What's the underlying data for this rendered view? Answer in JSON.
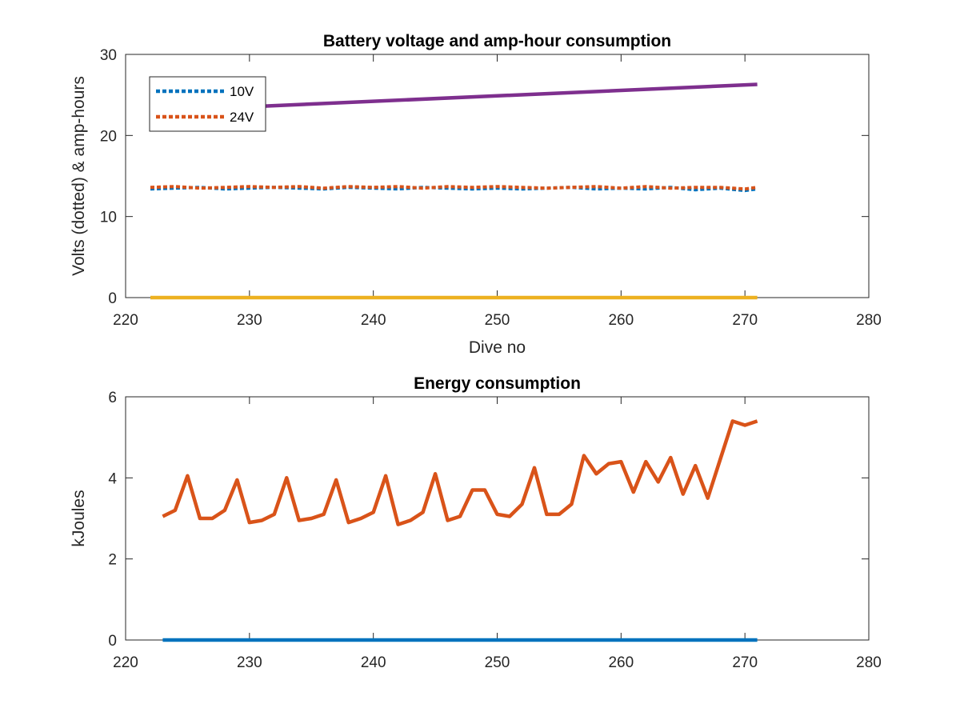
{
  "chart_data": [
    {
      "type": "line",
      "title": "Battery voltage and amp-hour consumption",
      "xlabel": "Dive no",
      "ylabel": "Volts (dotted) & amp-hours",
      "xlim": [
        220,
        280
      ],
      "ylim": [
        0,
        30
      ],
      "xticks": [
        "220",
        "230",
        "240",
        "250",
        "260",
        "270",
        "280"
      ],
      "yticks": [
        "0",
        "10",
        "20",
        "30"
      ],
      "legend": {
        "placement": "top-left",
        "entries": [
          "10V",
          "24V"
        ]
      },
      "grid": false,
      "series": [
        {
          "name": "10V",
          "color": "#0072BD",
          "style": "dotted",
          "x": [
            222,
            224,
            226,
            228,
            230,
            232,
            234,
            236,
            238,
            240,
            242,
            244,
            246,
            248,
            250,
            252,
            254,
            256,
            258,
            260,
            262,
            264,
            266,
            268,
            270,
            271
          ],
          "y": [
            13.4,
            13.5,
            13.6,
            13.4,
            13.5,
            13.6,
            13.5,
            13.4,
            13.6,
            13.5,
            13.4,
            13.6,
            13.5,
            13.4,
            13.5,
            13.4,
            13.5,
            13.6,
            13.4,
            13.5,
            13.4,
            13.6,
            13.3,
            13.5,
            13.2,
            13.4
          ]
        },
        {
          "name": "24V",
          "color": "#D95319",
          "style": "dotted",
          "x": [
            222,
            224,
            226,
            228,
            230,
            232,
            234,
            236,
            238,
            240,
            242,
            244,
            246,
            248,
            250,
            252,
            254,
            256,
            258,
            260,
            262,
            264,
            266,
            268,
            270,
            271
          ],
          "y": [
            13.6,
            13.7,
            13.5,
            13.6,
            13.7,
            13.6,
            13.7,
            13.5,
            13.7,
            13.6,
            13.7,
            13.5,
            13.7,
            13.6,
            13.7,
            13.6,
            13.5,
            13.6,
            13.7,
            13.5,
            13.7,
            13.5,
            13.6,
            13.6,
            13.4,
            13.6
          ]
        },
        {
          "color": "#EDB120",
          "style": "solid",
          "x": [
            222,
            271
          ],
          "y": [
            0,
            0
          ]
        },
        {
          "color": "#7E2F8E",
          "style": "solid",
          "x": [
            222,
            271
          ],
          "y": [
            23.0,
            26.3
          ]
        }
      ]
    },
    {
      "type": "line",
      "title": "Energy consumption",
      "xlabel": "",
      "ylabel": "kJoules",
      "xlim": [
        220,
        280
      ],
      "ylim": [
        0,
        6
      ],
      "xticks": [
        "220",
        "230",
        "240",
        "250",
        "260",
        "270",
        "280"
      ],
      "yticks": [
        "0",
        "2",
        "4",
        "6"
      ],
      "grid": false,
      "series": [
        {
          "color": "#D95319",
          "style": "solid",
          "x": [
            223,
            224,
            225,
            226,
            227,
            228,
            229,
            230,
            231,
            232,
            233,
            234,
            235,
            236,
            237,
            238,
            239,
            240,
            241,
            242,
            243,
            244,
            245,
            246,
            247,
            248,
            249,
            250,
            251,
            252,
            253,
            254,
            255,
            256,
            257,
            258,
            259,
            260,
            261,
            262,
            263,
            264,
            265,
            266,
            267,
            268,
            269,
            270,
            271
          ],
          "y": [
            3.05,
            3.2,
            4.05,
            3.0,
            3.0,
            3.2,
            3.95,
            2.9,
            2.95,
            3.1,
            4.0,
            2.95,
            3.0,
            3.1,
            3.95,
            2.9,
            3.0,
            3.15,
            4.05,
            2.85,
            2.95,
            3.15,
            4.1,
            2.95,
            3.05,
            3.7,
            3.7,
            3.1,
            3.05,
            3.35,
            4.25,
            3.1,
            3.1,
            3.35,
            4.55,
            4.1,
            4.35,
            4.4,
            3.65,
            4.4,
            3.9,
            4.5,
            3.6,
            4.3,
            3.5,
            4.45,
            5.4,
            5.3,
            5.4
          ]
        },
        {
          "color": "#0072BD",
          "style": "solid",
          "x": [
            223,
            271
          ],
          "y": [
            0,
            0
          ]
        }
      ]
    }
  ]
}
